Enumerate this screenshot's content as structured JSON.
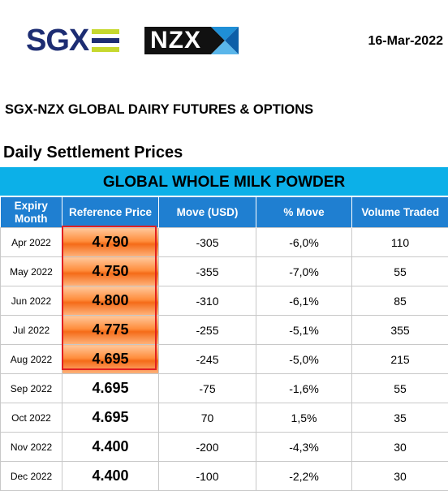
{
  "header": {
    "sgx_logo_text": "SGX",
    "nzx_logo_text": "NZX",
    "date": "16-Mar-2022",
    "title": "SGX-NZX GLOBAL DAIRY FUTURES & OPTIONS",
    "subtitle": "Daily Settlement Prices"
  },
  "table": {
    "banner": "GLOBAL WHOLE MILK POWDER",
    "columns": {
      "expiry_line1": "Expiry",
      "expiry_line2": "Month",
      "reference_price": "Reference Price",
      "move_usd": "Move (USD)",
      "pct_move": "% Move",
      "volume": "Volume Traded"
    },
    "rows": [
      {
        "month": "Apr 2022",
        "price": "4.790",
        "move": "-305",
        "pct": "-6,0%",
        "volume": "110"
      },
      {
        "month": "May 2022",
        "price": "4.750",
        "move": "-355",
        "pct": "-7,0%",
        "volume": "55"
      },
      {
        "month": "Jun 2022",
        "price": "4.800",
        "move": "-310",
        "pct": "-6,1%",
        "volume": "85"
      },
      {
        "month": "Jul 2022",
        "price": "4.775",
        "move": "-255",
        "pct": "-5,1%",
        "volume": "355"
      },
      {
        "month": "Aug 2022",
        "price": "4.695",
        "move": "-245",
        "pct": "-5,0%",
        "volume": "215"
      },
      {
        "month": "Sep 2022",
        "price": "4.695",
        "move": "-75",
        "pct": "-1,6%",
        "volume": "55"
      },
      {
        "month": "Oct 2022",
        "price": "4.695",
        "move": "70",
        "pct": "1,5%",
        "volume": "35"
      },
      {
        "month": "Nov 2022",
        "price": "4.400",
        "move": "-200",
        "pct": "-4,3%",
        "volume": "30"
      },
      {
        "month": "Dec 2022",
        "price": "4.400",
        "move": "-100",
        "pct": "-2,2%",
        "volume": "30"
      }
    ]
  },
  "colors": {
    "sgx_blue": "#1d2d73",
    "sgx_green": "#c6d82e",
    "banner": "#0cb0e8",
    "header_row": "#1f7fd1",
    "highlight_orange": "#ff8d3c",
    "highlight_border": "#e12020"
  }
}
